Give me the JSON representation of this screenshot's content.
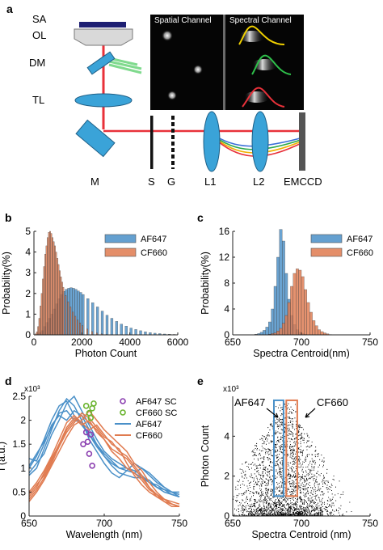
{
  "panels": {
    "a": {
      "label": "a",
      "labels": {
        "SA": "SA",
        "OL": "OL",
        "DM": "DM",
        "TL": "TL",
        "M": "M",
        "S": "S",
        "G": "G",
        "L1": "L1",
        "L2": "L2",
        "EMCCD": "EMCCD"
      },
      "spatial_channel": "Spatial Channel",
      "spectral_channel": "Spectral Channel"
    },
    "b": {
      "label": "b"
    },
    "c": {
      "label": "c"
    },
    "d": {
      "label": "d"
    },
    "e": {
      "label": "e"
    }
  },
  "colors": {
    "af647": "#4a90c8",
    "cf660": "#e07b50",
    "sc_af647": "#8b3fb0",
    "sc_cf660": "#6ab42f",
    "laser": "#e8313a",
    "optic": "#3aa3d8",
    "dm_beam": "#6ad37a"
  },
  "chart_data": [
    {
      "type": "bar",
      "panel": "b",
      "xlabel": "Photon Count",
      "ylabel": "Probability(%)",
      "xlim": [
        0,
        6000
      ],
      "ylim": [
        0,
        5
      ],
      "xticks": [
        0,
        2000,
        4000,
        6000
      ],
      "yticks": [
        0,
        1,
        2,
        3,
        4,
        5
      ],
      "legend": "top-right",
      "series": [
        {
          "name": "AF647",
          "bin_width": 100,
          "x": [
            0,
            100,
            200,
            300,
            400,
            500,
            600,
            700,
            800,
            900,
            1000,
            1100,
            1200,
            1300,
            1400,
            1500,
            1600,
            1700,
            1800,
            1900,
            2000,
            2200,
            2400,
            2600,
            2800,
            3000,
            3200,
            3400,
            3600,
            3800,
            4000,
            4200,
            4400,
            4600,
            4800,
            5000,
            5200,
            5400,
            5600,
            5800
          ],
          "values": [
            0.0,
            0.05,
            0.1,
            0.2,
            0.4,
            0.6,
            0.8,
            1.0,
            1.25,
            1.5,
            1.75,
            1.95,
            2.1,
            2.2,
            2.25,
            2.28,
            2.25,
            2.2,
            2.12,
            2.05,
            1.95,
            1.75,
            1.55,
            1.35,
            1.15,
            0.95,
            0.8,
            0.65,
            0.52,
            0.42,
            0.33,
            0.26,
            0.2,
            0.15,
            0.11,
            0.08,
            0.06,
            0.04,
            0.03,
            0.02
          ]
        },
        {
          "name": "CF660",
          "bin_width": 50,
          "x": [
            0,
            50,
            100,
            150,
            200,
            250,
            300,
            350,
            400,
            450,
            500,
            550,
            600,
            650,
            700,
            750,
            800,
            850,
            900,
            950,
            1000,
            1050,
            1100,
            1150,
            1200,
            1300,
            1400,
            1500,
            1600,
            1700,
            1800,
            1900,
            2000,
            2200,
            2400,
            2600,
            2800,
            3000
          ],
          "values": [
            0.0,
            0.05,
            0.15,
            0.4,
            0.8,
            1.4,
            2.0,
            2.7,
            3.3,
            3.9,
            4.3,
            4.7,
            4.95,
            5.0,
            4.9,
            4.7,
            4.5,
            4.3,
            4.0,
            3.7,
            3.4,
            3.1,
            2.8,
            2.55,
            2.3,
            1.9,
            1.6,
            1.35,
            1.1,
            0.9,
            0.72,
            0.58,
            0.45,
            0.28,
            0.16,
            0.09,
            0.05,
            0.02
          ]
        }
      ]
    },
    {
      "type": "bar",
      "panel": "c",
      "xlabel": "Spectra Centroid(nm)",
      "ylabel": "Probability(%)",
      "xlim": [
        650,
        750
      ],
      "ylim": [
        0,
        16
      ],
      "xticks": [
        650,
        700,
        750
      ],
      "yticks": [
        0,
        4,
        8,
        12,
        16
      ],
      "legend": "top-right",
      "series": [
        {
          "name": "AF647",
          "bin_width": 2,
          "x": [
            666,
            668,
            670,
            672,
            674,
            676,
            678,
            680,
            682,
            684,
            686,
            688,
            690,
            692,
            694,
            696,
            698,
            700,
            702,
            704
          ],
          "values": [
            0.1,
            0.2,
            0.4,
            0.7,
            1.2,
            2.0,
            4.0,
            7.5,
            12.0,
            16.3,
            14.5,
            9.5,
            5.5,
            3.0,
            1.6,
            0.8,
            0.4,
            0.2,
            0.1,
            0.05
          ]
        },
        {
          "name": "CF660",
          "bin_width": 2,
          "x": [
            676,
            678,
            680,
            682,
            684,
            686,
            688,
            690,
            692,
            694,
            696,
            698,
            700,
            702,
            704,
            706,
            708,
            710,
            712,
            714,
            716,
            718,
            720
          ],
          "values": [
            0.1,
            0.2,
            0.3,
            0.6,
            1.0,
            1.8,
            3.0,
            5.0,
            7.5,
            9.5,
            10.2,
            10.0,
            9.0,
            7.0,
            5.0,
            3.5,
            2.2,
            1.4,
            0.8,
            0.5,
            0.3,
            0.15,
            0.05
          ]
        }
      ]
    },
    {
      "type": "line",
      "panel": "d",
      "xlabel": "Wavelength (nm)",
      "ylabel": "I (a.u.)",
      "y_exponent": "x10³",
      "xlim": [
        650,
        750
      ],
      "ylim": [
        0,
        2.5
      ],
      "xticks": [
        650,
        700,
        750
      ],
      "yticks": [
        0,
        0.5,
        1,
        1.5,
        2,
        2.5
      ],
      "legend": "top-right",
      "legend_entries": [
        "AF647 SC",
        "CF660 SC",
        "AF647",
        "CF660"
      ],
      "series": [
        {
          "name": "AF647",
          "x": [
            650,
            655,
            660,
            665,
            670,
            675,
            680,
            685,
            690,
            695,
            700,
            705,
            710,
            715,
            720,
            725,
            730,
            735,
            740,
            745,
            750
          ],
          "lines": [
            [
              1.0,
              1.25,
              1.6,
              2.0,
              2.3,
              2.4,
              2.1,
              1.9,
              1.7,
              1.5,
              1.3,
              1.15,
              1.0,
              0.95,
              0.9,
              1.0,
              0.9,
              0.75,
              0.6,
              0.5,
              0.45
            ],
            [
              0.85,
              1.0,
              1.4,
              1.8,
              2.2,
              2.45,
              2.3,
              2.0,
              1.6,
              1.35,
              1.1,
              0.9,
              0.8,
              0.95,
              1.1,
              1.0,
              0.85,
              0.7,
              0.6,
              0.5,
              0.4
            ],
            [
              1.2,
              1.15,
              1.5,
              1.9,
              2.1,
              2.0,
              2.2,
              2.1,
              1.8,
              1.5,
              1.25,
              1.05,
              0.9,
              0.85,
              0.8,
              0.8,
              0.75,
              0.6,
              0.5,
              0.45,
              0.4
            ],
            [
              0.9,
              1.1,
              1.3,
              1.7,
              2.0,
              2.35,
              2.5,
              2.2,
              1.9,
              1.6,
              1.35,
              1.2,
              1.1,
              1.0,
              0.95,
              0.85,
              0.7,
              0.6,
              0.55,
              0.5,
              0.5
            ],
            [
              1.05,
              1.3,
              1.55,
              1.85,
              2.15,
              2.2,
              2.0,
              1.95,
              1.7,
              1.45,
              1.25,
              1.1,
              1.0,
              1.0,
              0.9,
              0.8,
              0.7,
              0.65,
              0.55,
              0.45,
              0.4
            ]
          ]
        },
        {
          "name": "CF660",
          "x": [
            650,
            655,
            660,
            665,
            670,
            675,
            680,
            685,
            690,
            695,
            700,
            705,
            710,
            715,
            720,
            725,
            730,
            735,
            740,
            745,
            750
          ],
          "lines": [
            [
              0.4,
              0.6,
              0.9,
              1.2,
              1.5,
              1.8,
              2.0,
              2.1,
              1.95,
              1.8,
              1.6,
              1.4,
              1.3,
              1.2,
              1.0,
              0.8,
              0.6,
              0.4,
              0.3,
              0.2,
              0.2
            ],
            [
              0.3,
              0.5,
              0.75,
              1.05,
              1.35,
              1.65,
              1.9,
              2.0,
              2.2,
              2.0,
              1.8,
              1.65,
              1.5,
              1.35,
              1.1,
              0.95,
              0.7,
              0.5,
              0.35,
              0.25,
              0.2
            ],
            [
              0.5,
              0.7,
              0.95,
              1.25,
              1.6,
              1.95,
              2.1,
              1.95,
              1.8,
              1.9,
              1.7,
              1.5,
              1.4,
              1.1,
              0.85,
              0.65,
              0.5,
              0.4,
              0.35,
              0.3,
              0.25
            ],
            [
              0.35,
              0.55,
              0.8,
              1.1,
              1.45,
              1.75,
              1.95,
              2.15,
              2.05,
              1.85,
              1.65,
              1.55,
              1.35,
              1.25,
              1.05,
              0.85,
              0.6,
              0.45,
              0.35,
              0.25,
              0.2
            ],
            [
              0.45,
              0.65,
              0.85,
              1.15,
              1.5,
              1.85,
              2.05,
              1.9,
              2.0,
              1.75,
              1.6,
              1.35,
              1.2,
              1.0,
              0.9,
              0.75,
              0.55,
              0.45,
              0.3,
              0.25,
              0.2
            ]
          ]
        },
        {
          "name": "AF647 SC",
          "type": "scatter",
          "x": [
            686,
            688,
            689,
            690,
            691,
            692
          ],
          "values": [
            1.5,
            1.75,
            1.55,
            1.3,
            1.7,
            1.05
          ]
        },
        {
          "name": "CF660 SC",
          "type": "scatter",
          "x": [
            688,
            690,
            691,
            692,
            693
          ],
          "values": [
            2.3,
            2.15,
            2.05,
            2.25,
            2.35
          ]
        }
      ]
    },
    {
      "type": "scatter",
      "panel": "e",
      "xlabel": "Spectra Centroid (nm)",
      "ylabel": "Photon Count",
      "y_exponent": "x10³",
      "xlim": [
        650,
        750
      ],
      "ylim": [
        0,
        6
      ],
      "xticks": [
        650,
        700,
        750
      ],
      "yticks": [
        0,
        2,
        4
      ],
      "annotations": [
        "AF647",
        "CF660"
      ],
      "gates": [
        {
          "name": "AF647",
          "x": [
            680,
            687
          ],
          "y": [
            1.0,
            5.8
          ]
        },
        {
          "name": "CF660",
          "x": [
            689,
            697
          ],
          "y": [
            1.0,
            5.8
          ]
        }
      ],
      "center_x": 688,
      "y_max_at_center": 3.0
    }
  ]
}
